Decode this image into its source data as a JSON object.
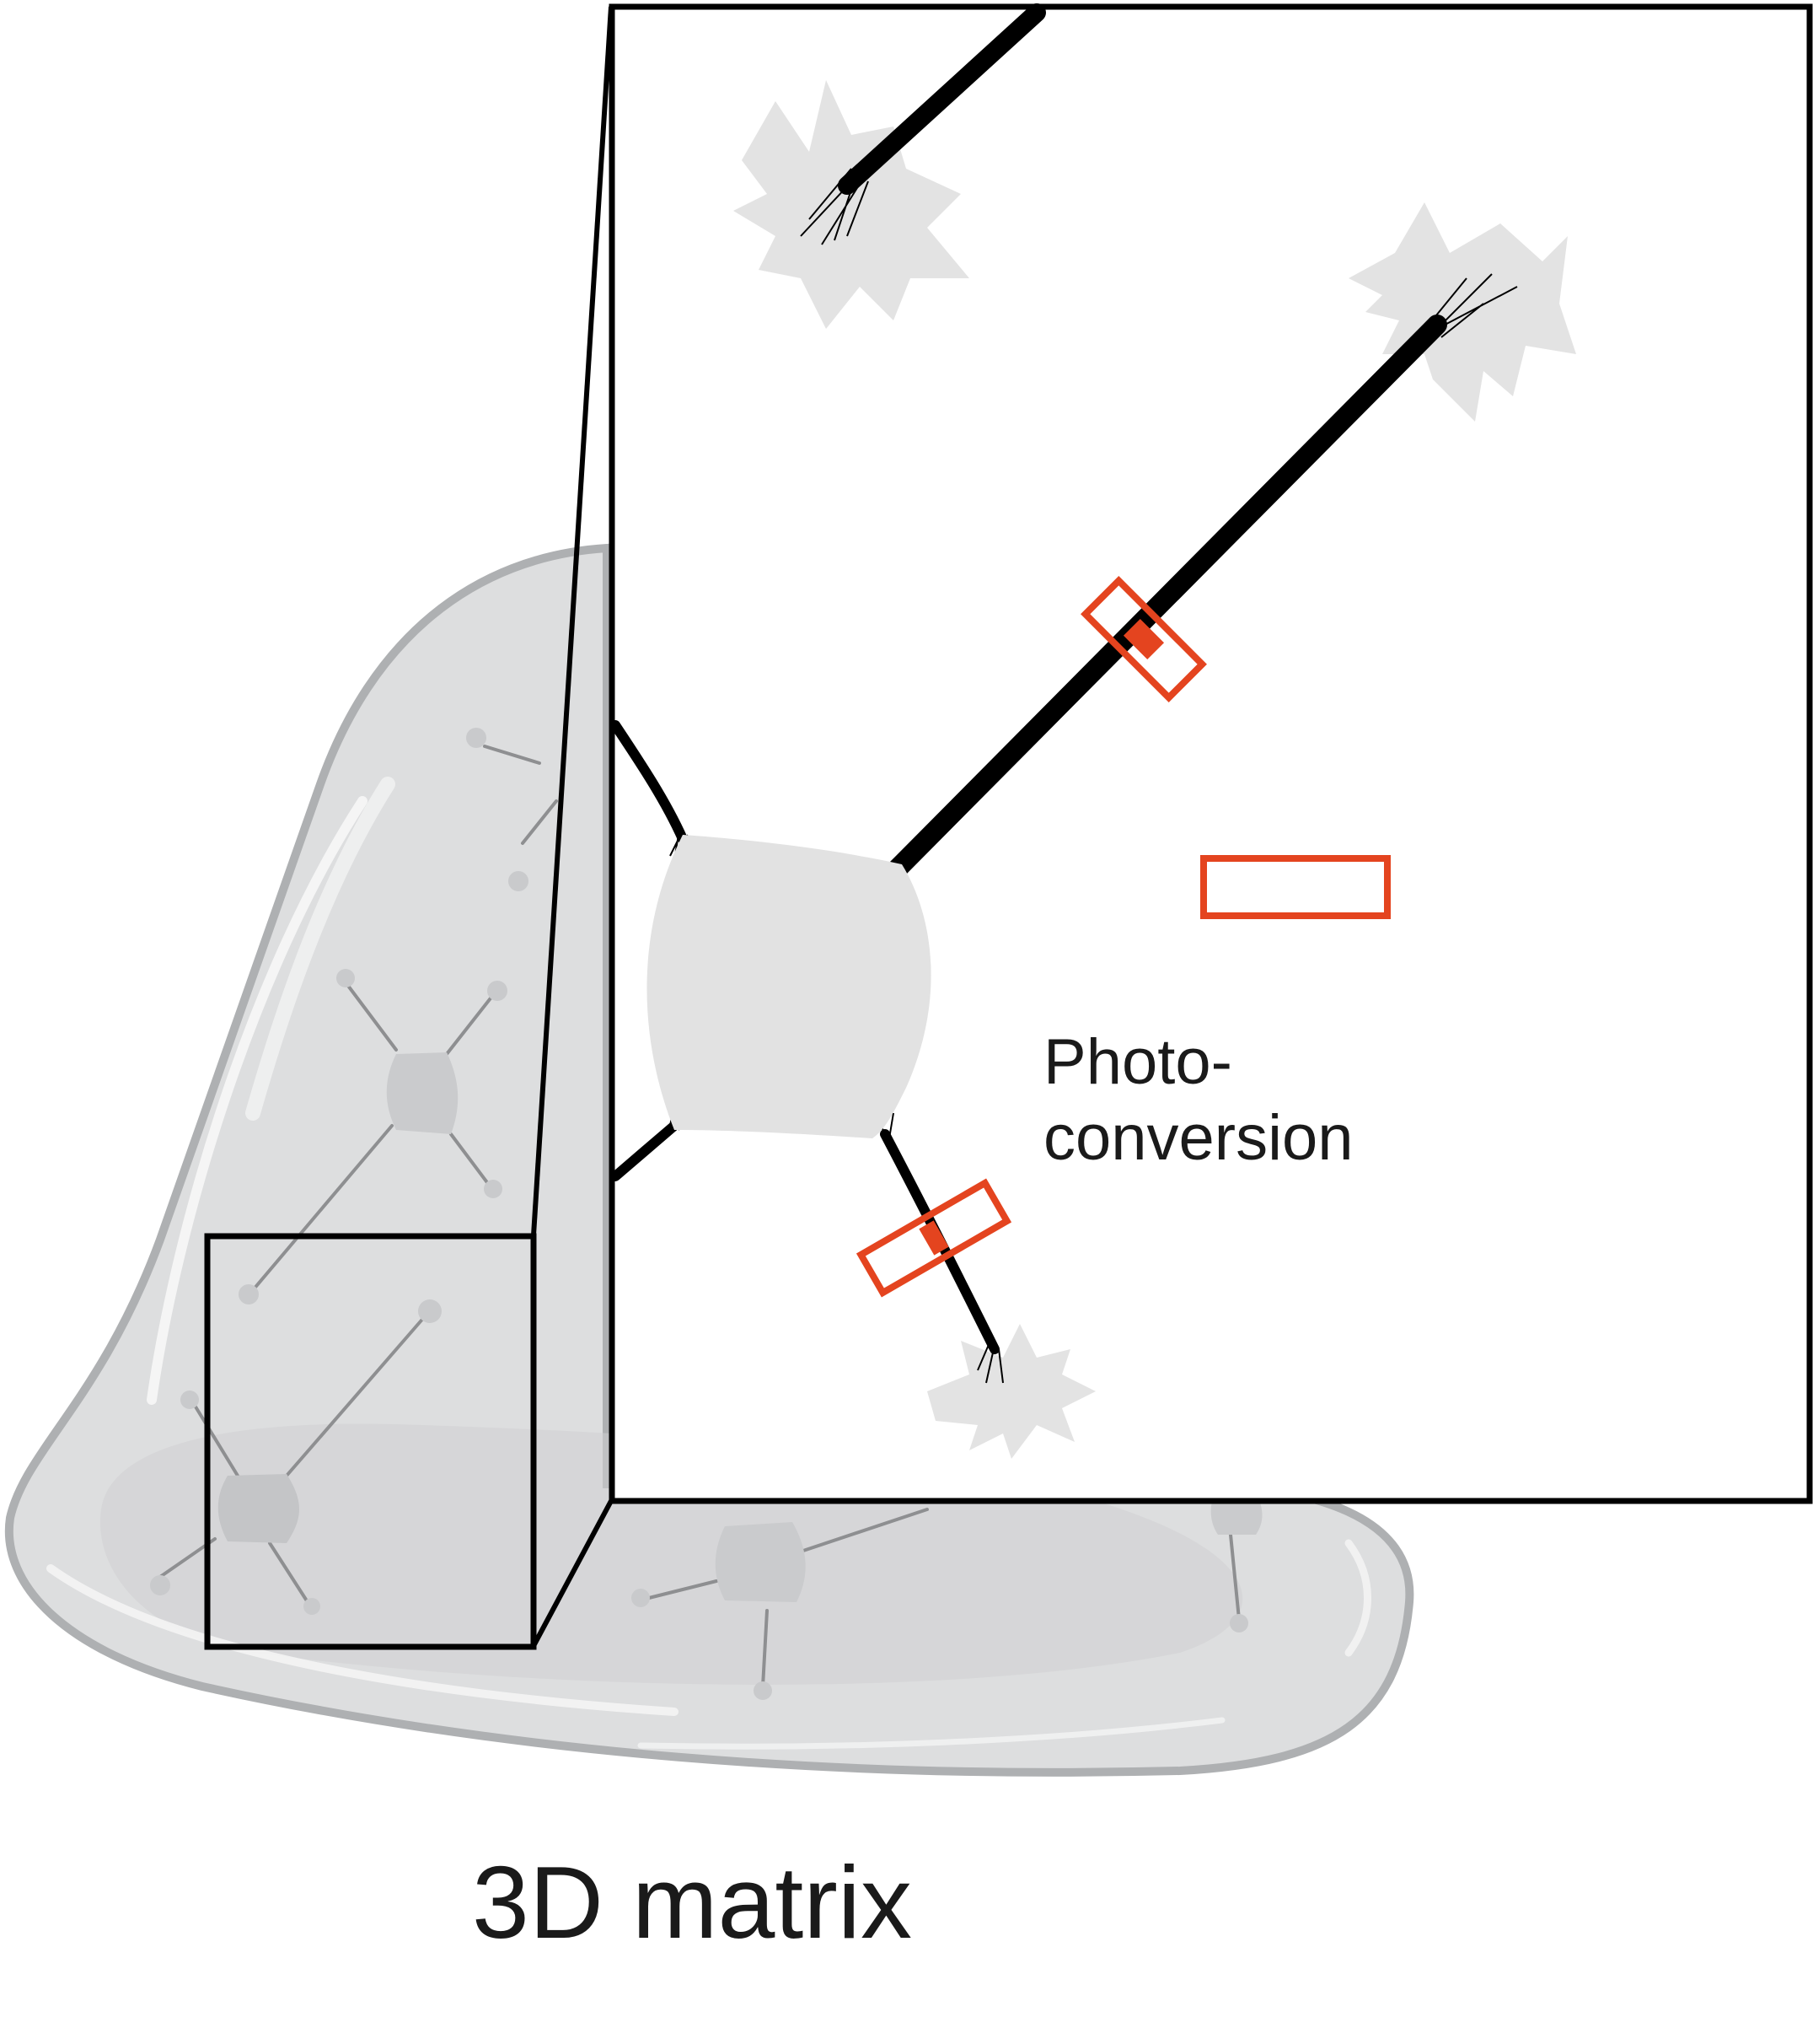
{
  "labels": {
    "matrix": "3D matrix",
    "photoconversion_line1": "Photo-",
    "photoconversion_line2": "conversion"
  },
  "colors": {
    "background": "#ffffff",
    "gel_fill": "#dadbdc",
    "gel_outline": "#aeb0b2",
    "cell_body": "#e2e2e2",
    "process": "#000000",
    "photoconversion_box": "#e4441f",
    "frame": "#000000"
  },
  "elements": {
    "gel": "3D matrix gel",
    "zoom_region": "zoom region box",
    "inset": "magnified inset",
    "cell_body": "central cell body",
    "photoconversion_boxes": 3
  }
}
